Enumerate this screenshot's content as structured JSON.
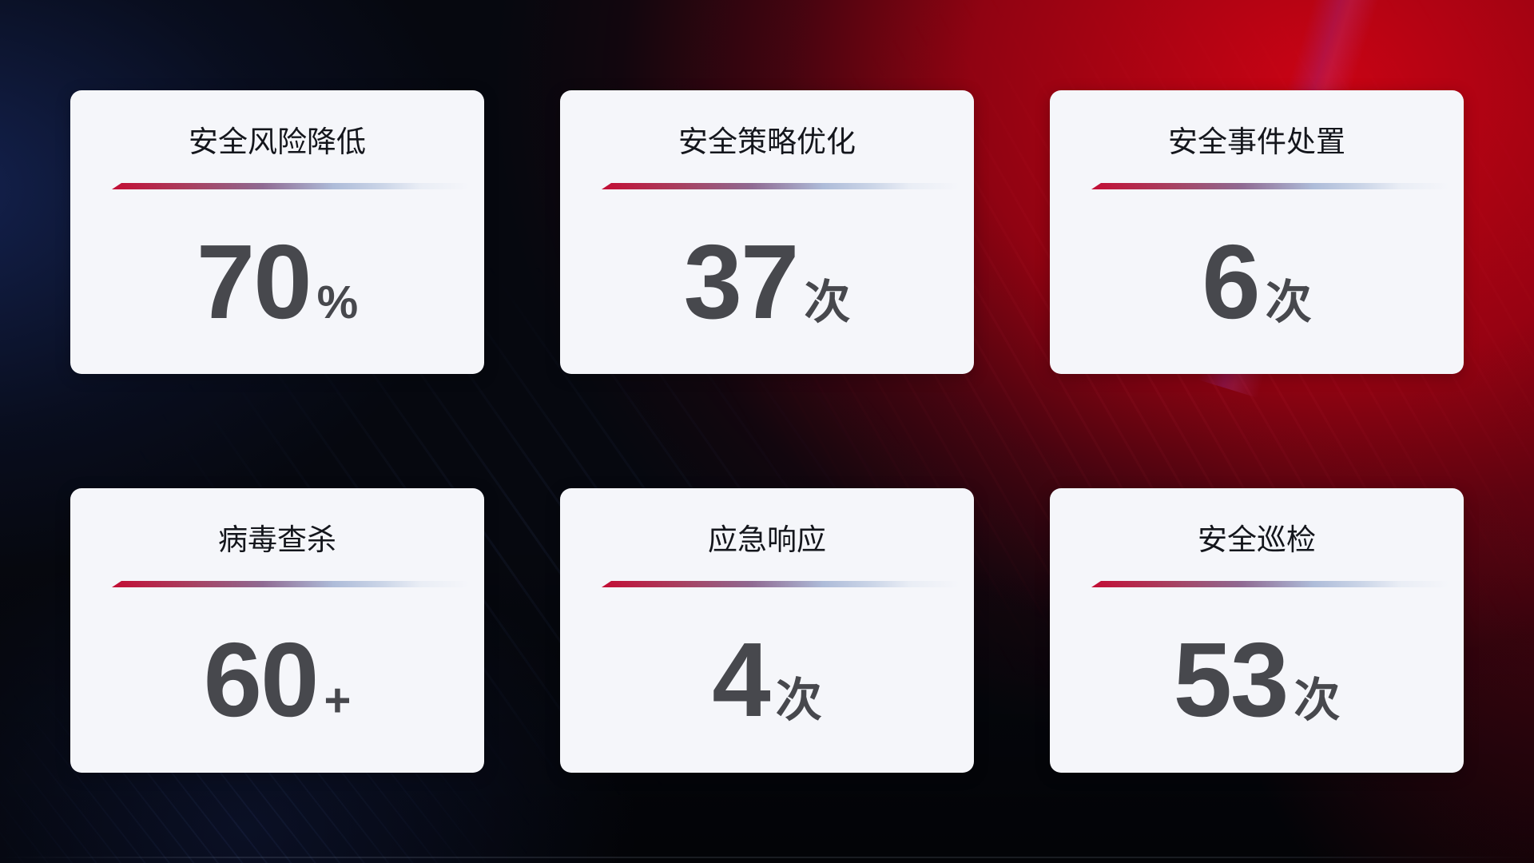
{
  "cards": [
    {
      "title": "安全风险降低",
      "value": "70",
      "unit": "%"
    },
    {
      "title": "安全策略优化",
      "value": "37",
      "unit": "次"
    },
    {
      "title": "安全事件处置",
      "value": "6",
      "unit": "次"
    },
    {
      "title": "病毒查杀",
      "value": "60",
      "unit": "+"
    },
    {
      "title": "应急响应",
      "value": "4",
      "unit": "次"
    },
    {
      "title": "安全巡检",
      "value": "53",
      "unit": "次"
    }
  ],
  "colors": {
    "card-bg": "#f5f6fa",
    "title-color": "#14161c",
    "value-color": "#47484d",
    "divider-red": "#c30d34",
    "divider-mid": "#8f6a92",
    "divider-blue": "#aebcd9",
    "bg-base": "#06080f"
  }
}
